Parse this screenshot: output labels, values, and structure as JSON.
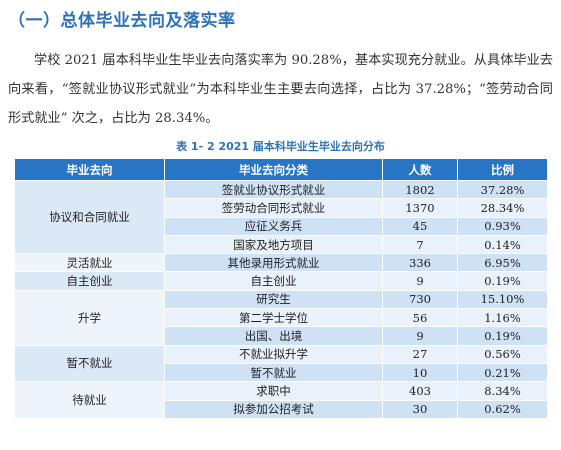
{
  "heading": "（一）总体毕业去向及落实率",
  "paragraph": "学校 2021 届本科毕业生毕业去向落实率为 90.28%，基本实现充分就业。从具体毕业去向来看，“签就业协议形式就业”为本科毕业生主要去向选择，占比为 37.28%；“签劳动合同形式就业” 次之，占比为 28.34%。",
  "table": {
    "caption": "表 1- 2    2021 届本科毕业生毕业去向分布",
    "headers": [
      "毕业去向",
      "毕业去向分类",
      "人数",
      "比例"
    ],
    "groups": [
      "协议和合同就业",
      "灵活就业",
      "自主创业",
      "升学",
      "暂不就业",
      "待就业"
    ],
    "rows": [
      {
        "category": "签就业协议形式就业",
        "count": "1802",
        "ratio": "37.28%"
      },
      {
        "category": "签劳动合同形式就业",
        "count": "1370",
        "ratio": "28.34%"
      },
      {
        "category": "应征义务兵",
        "count": "45",
        "ratio": "0.93%"
      },
      {
        "category": "国家及地方项目",
        "count": "7",
        "ratio": "0.14%"
      },
      {
        "category": "其他录用形式就业",
        "count": "336",
        "ratio": "6.95%"
      },
      {
        "category": "自主创业",
        "count": "9",
        "ratio": "0.19%"
      },
      {
        "category": "研究生",
        "count": "730",
        "ratio": "15.10%"
      },
      {
        "category": "第二学士学位",
        "count": "56",
        "ratio": "1.16%"
      },
      {
        "category": "出国、出境",
        "count": "9",
        "ratio": "0.19%"
      },
      {
        "category": "不就业拟升学",
        "count": "27",
        "ratio": "0.56%"
      },
      {
        "category": "暂不就业",
        "count": "10",
        "ratio": "0.21%"
      },
      {
        "category": "求职中",
        "count": "403",
        "ratio": "8.34%"
      },
      {
        "category": "拟参加公招考试",
        "count": "30",
        "ratio": "0.62%"
      }
    ]
  }
}
